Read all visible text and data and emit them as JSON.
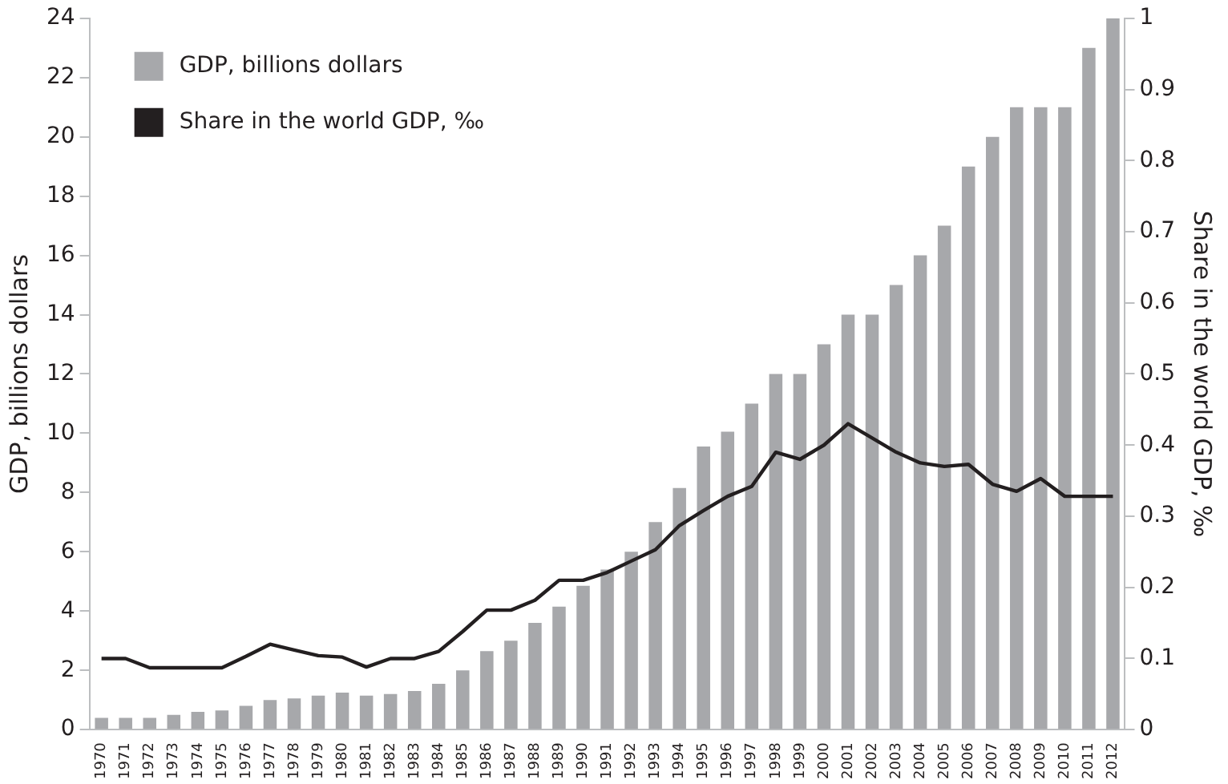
{
  "chart_data": {
    "type": "bar",
    "ylabel": "GDP, billions dollars",
    "y2label": "Share in the world GDP, ‰",
    "categories": [
      "1970",
      "1971",
      "1972",
      "1973",
      "1974",
      "1975",
      "1976",
      "1977",
      "1978",
      "1979",
      "1980",
      "1981",
      "1982",
      "1983",
      "1984",
      "1985",
      "1986",
      "1987",
      "1988",
      "1989",
      "1990",
      "1991",
      "1992",
      "1993",
      "1994",
      "1995",
      "1996",
      "1997",
      "1998",
      "1999",
      "2000",
      "2001",
      "2002",
      "2003",
      "2004",
      "2005",
      "2006",
      "2007",
      "2008",
      "2009",
      "2010",
      "2011",
      "2012"
    ],
    "series": [
      {
        "name": "GDP, billions dollars",
        "color": "#a7a8ab",
        "values": [
          0.4,
          0.4,
          0.4,
          0.5,
          0.6,
          0.65,
          0.8,
          1.0,
          1.05,
          1.15,
          1.25,
          1.15,
          1.2,
          1.3,
          1.55,
          2.0,
          2.65,
          3.0,
          3.6,
          4.15,
          4.85,
          5.4,
          6.0,
          7.0,
          8.15,
          9.55,
          10.05,
          11.0,
          12.0,
          12.0,
          13.0,
          14.0,
          14.0,
          15.0,
          16.0,
          17.0,
          19.0,
          20.0,
          21.0,
          21.0,
          21.0,
          23.0,
          24.0
        ]
      },
      {
        "name": "Share in the world GDP, ‰",
        "type": "line",
        "axis": "y2",
        "color": "#231f20",
        "values": [
          0.1,
          0.1,
          0.087,
          0.087,
          0.087,
          0.087,
          0.103,
          0.12,
          0.112,
          0.104,
          0.102,
          0.088,
          0.1,
          0.1,
          0.11,
          0.138,
          0.168,
          0.168,
          0.182,
          0.21,
          0.21,
          0.221,
          0.237,
          0.253,
          0.287,
          0.308,
          0.328,
          0.342,
          0.39,
          0.38,
          0.4,
          0.43,
          0.41,
          0.39,
          0.375,
          0.37,
          0.373,
          0.345,
          0.335,
          0.353,
          0.328,
          0.328,
          0.328
        ]
      }
    ],
    "ylim": [
      0,
      24
    ],
    "yticks": [
      0,
      2,
      4,
      6,
      8,
      10,
      12,
      14,
      16,
      18,
      20,
      22,
      24
    ],
    "y2lim": [
      0,
      1
    ],
    "y2ticks": [
      0,
      0.1,
      0.2,
      0.3,
      0.4,
      0.5,
      0.6,
      0.7,
      0.8,
      0.9,
      1
    ],
    "grid": false,
    "legend": "top left",
    "marker": "none",
    "line_style": "solid"
  }
}
